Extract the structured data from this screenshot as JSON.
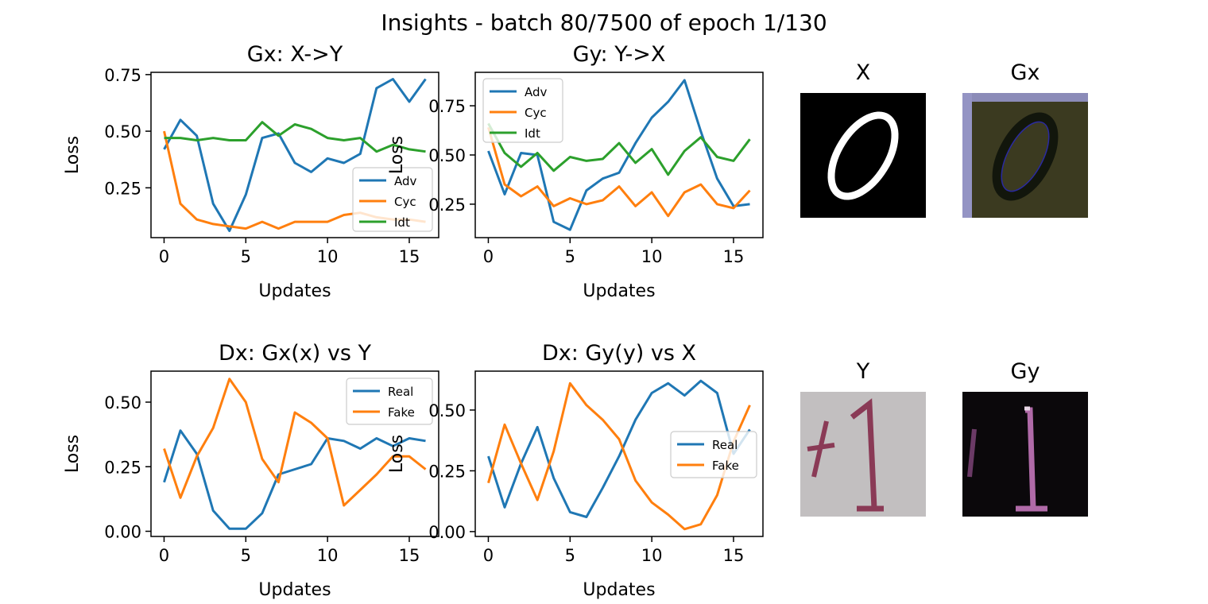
{
  "suptitle": "Insights - batch 80/7500 of epoch 1/130",
  "colors": {
    "blue": "#1f77b4",
    "orange": "#ff7f0e",
    "green": "#2ca02c"
  },
  "chart_data": [
    {
      "type": "line",
      "title": "Gx: X->Y",
      "xlabel": "Updates",
      "ylabel": "Loss",
      "xlim": [
        -0.8,
        16.8
      ],
      "ylim": [
        0.03,
        0.76
      ],
      "xticks": [
        0,
        5,
        10,
        15
      ],
      "xtick_labels": [
        "0",
        "5",
        "10",
        "15"
      ],
      "yticks": [
        0.25,
        0.5,
        0.75
      ],
      "ytick_labels": [
        "0.25",
        "0.50",
        "0.75"
      ],
      "legend": "lower-right",
      "x": [
        0,
        1,
        2,
        3,
        4,
        5,
        6,
        7,
        8,
        9,
        10,
        11,
        12,
        13,
        14,
        15,
        16
      ],
      "series": [
        {
          "name": "Adv",
          "color": "#1f77b4",
          "values": [
            0.42,
            0.55,
            0.48,
            0.18,
            0.06,
            0.22,
            0.47,
            0.49,
            0.36,
            0.32,
            0.38,
            0.36,
            0.4,
            0.69,
            0.73,
            0.63,
            0.73
          ]
        },
        {
          "name": "Cyc",
          "color": "#ff7f0e",
          "values": [
            0.5,
            0.18,
            0.11,
            0.09,
            0.08,
            0.07,
            0.1,
            0.07,
            0.1,
            0.1,
            0.1,
            0.13,
            0.14,
            0.12,
            0.11,
            0.11,
            0.1
          ]
        },
        {
          "name": "Idt",
          "color": "#2ca02c",
          "values": [
            0.47,
            0.47,
            0.46,
            0.47,
            0.46,
            0.46,
            0.54,
            0.48,
            0.53,
            0.51,
            0.47,
            0.46,
            0.47,
            0.41,
            0.44,
            0.42,
            0.41
          ]
        }
      ]
    },
    {
      "type": "line",
      "title": "Gy: Y->X",
      "xlabel": "Updates",
      "ylabel": "Loss",
      "xlim": [
        -0.8,
        16.8
      ],
      "ylim": [
        0.08,
        0.92
      ],
      "xticks": [
        0,
        5,
        10,
        15
      ],
      "xtick_labels": [
        "0",
        "5",
        "10",
        "15"
      ],
      "yticks": [
        0.25,
        0.5,
        0.75
      ],
      "ytick_labels": [
        "0.25",
        "0.50",
        "0.75"
      ],
      "legend": "upper-left",
      "x": [
        0,
        1,
        2,
        3,
        4,
        5,
        6,
        7,
        8,
        9,
        10,
        11,
        12,
        13,
        14,
        15,
        16
      ],
      "series": [
        {
          "name": "Adv",
          "color": "#1f77b4",
          "values": [
            0.52,
            0.3,
            0.51,
            0.5,
            0.16,
            0.12,
            0.32,
            0.38,
            0.41,
            0.56,
            0.69,
            0.77,
            0.88,
            0.62,
            0.38,
            0.24,
            0.25
          ]
        },
        {
          "name": "Cyc",
          "color": "#ff7f0e",
          "values": [
            0.64,
            0.35,
            0.29,
            0.34,
            0.24,
            0.28,
            0.25,
            0.27,
            0.34,
            0.24,
            0.31,
            0.19,
            0.31,
            0.35,
            0.25,
            0.23,
            0.32
          ]
        },
        {
          "name": "Idt",
          "color": "#2ca02c",
          "values": [
            0.66,
            0.51,
            0.44,
            0.51,
            0.42,
            0.49,
            0.47,
            0.48,
            0.56,
            0.46,
            0.53,
            0.4,
            0.52,
            0.59,
            0.49,
            0.47,
            0.58
          ]
        }
      ]
    },
    {
      "type": "line",
      "title": "Dx: Gx(x) vs Y",
      "xlabel": "Updates",
      "ylabel": "Loss",
      "xlim": [
        -0.8,
        16.8
      ],
      "ylim": [
        -0.02,
        0.62
      ],
      "xticks": [
        0,
        5,
        10,
        15
      ],
      "xtick_labels": [
        "0",
        "5",
        "10",
        "15"
      ],
      "yticks": [
        0.0,
        0.25,
        0.5
      ],
      "ytick_labels": [
        "0.00",
        "0.25",
        "0.50"
      ],
      "legend": "upper-right",
      "x": [
        0,
        1,
        2,
        3,
        4,
        5,
        6,
        7,
        8,
        9,
        10,
        11,
        12,
        13,
        14,
        15,
        16
      ],
      "series": [
        {
          "name": "Real",
          "color": "#1f77b4",
          "values": [
            0.19,
            0.39,
            0.3,
            0.08,
            0.01,
            0.01,
            0.07,
            0.22,
            0.24,
            0.26,
            0.36,
            0.35,
            0.32,
            0.36,
            0.33,
            0.36,
            0.35
          ]
        },
        {
          "name": "Fake",
          "color": "#ff7f0e",
          "values": [
            0.32,
            0.13,
            0.29,
            0.4,
            0.59,
            0.5,
            0.28,
            0.19,
            0.46,
            0.42,
            0.36,
            0.1,
            0.16,
            0.22,
            0.29,
            0.29,
            0.24
          ]
        }
      ]
    },
    {
      "type": "line",
      "title": "Dx: Gy(y) vs X",
      "xlabel": "Updates",
      "ylabel": "Loss",
      "xlim": [
        -0.8,
        16.8
      ],
      "ylim": [
        -0.02,
        0.66
      ],
      "xticks": [
        0,
        5,
        10,
        15
      ],
      "xtick_labels": [
        "0",
        "5",
        "10",
        "15"
      ],
      "yticks": [
        0.0,
        0.25,
        0.5
      ],
      "ytick_labels": [
        "0.00",
        "0.25",
        "0.50"
      ],
      "legend": "center-right",
      "x": [
        0,
        1,
        2,
        3,
        4,
        5,
        6,
        7,
        8,
        9,
        10,
        11,
        12,
        13,
        14,
        15,
        16
      ],
      "series": [
        {
          "name": "Real",
          "color": "#1f77b4",
          "values": [
            0.31,
            0.1,
            0.28,
            0.43,
            0.22,
            0.08,
            0.06,
            0.18,
            0.31,
            0.46,
            0.57,
            0.61,
            0.56,
            0.62,
            0.57,
            0.32,
            0.42
          ]
        },
        {
          "name": "Fake",
          "color": "#ff7f0e",
          "values": [
            0.2,
            0.44,
            0.28,
            0.13,
            0.33,
            0.61,
            0.52,
            0.46,
            0.38,
            0.21,
            0.12,
            0.07,
            0.01,
            0.03,
            0.15,
            0.37,
            0.52
          ]
        }
      ]
    }
  ],
  "images": [
    {
      "title": "X",
      "content": "handwritten digit 0, white stroke on black"
    },
    {
      "title": "Gx",
      "content": "generated house-number style 0 on olive background"
    },
    {
      "title": "Y",
      "content": "house-number photo of digits 41, dark red on grey"
    },
    {
      "title": "Gy",
      "content": "generated digits 1 in pink on black"
    }
  ]
}
